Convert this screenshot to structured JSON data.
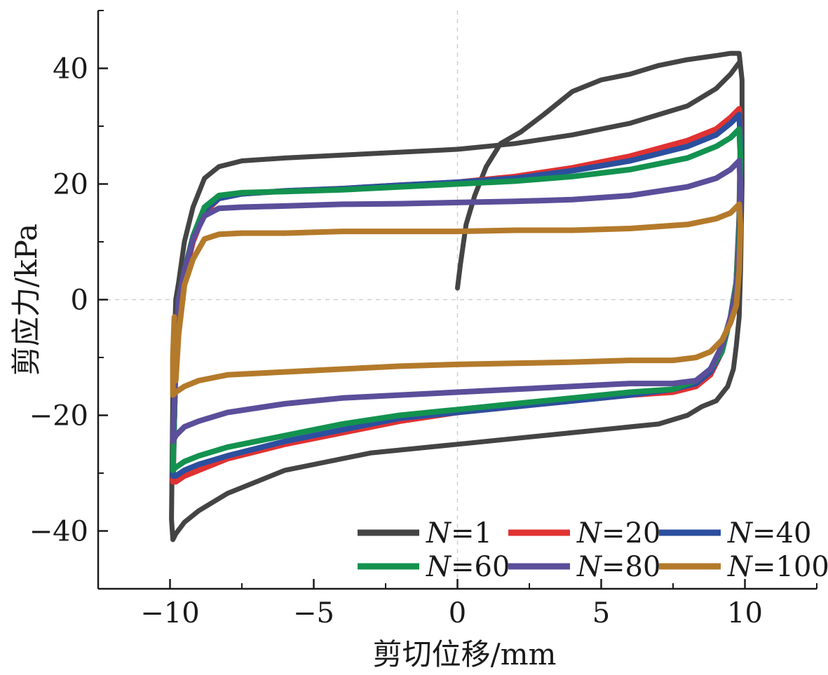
{
  "chart_data": {
    "type": "line",
    "xlabel": "剪切位移/mm",
    "ylabel": "剪应力/kPa",
    "xlim": [
      -12.5,
      12.5
    ],
    "ylim": [
      -50,
      50
    ],
    "xticks": [
      -10,
      -5,
      0,
      5,
      10
    ],
    "yticks": [
      -40,
      -20,
      0,
      20,
      40
    ],
    "xtick_labels": [
      "−10",
      "−5",
      "0",
      "5",
      "10"
    ],
    "ytick_labels": [
      "−40",
      "−20",
      "0",
      "20",
      "40"
    ],
    "grid": "dashed lines at x=0 and y=0 only",
    "legend_position": "bottom-right",
    "series": [
      {
        "name": "N=1",
        "legend_prefix": "N",
        "legend_suffix": "=1",
        "color": "#444444",
        "x": [
          0.0,
          0.1,
          0.3,
          0.6,
          1.0,
          1.5,
          2.2,
          3.0,
          4.0,
          5.0,
          6.0,
          7.0,
          8.0,
          9.0,
          9.5,
          9.8,
          9.9,
          9.9,
          9.85,
          9.8,
          9.7,
          9.6,
          9.4,
          9.0,
          8.5,
          8.0,
          7.0,
          5.0,
          3.0,
          0.0,
          -3.0,
          -6.0,
          -8.0,
          -9.0,
          -9.5,
          -9.8,
          -9.9,
          -9.95,
          -9.9,
          -9.8,
          -9.7,
          -9.5,
          -9.2,
          -8.8,
          -8.3,
          -7.5,
          -6.0,
          -4.0,
          -2.0,
          0.0,
          2.0,
          4.0,
          6.0,
          8.0,
          9.0,
          9.5,
          9.8
        ],
        "y": [
          2.0,
          6.0,
          13.0,
          18.0,
          23.0,
          27.0,
          29.0,
          32.0,
          36.0,
          38.0,
          39.0,
          40.5,
          41.5,
          42.2,
          42.6,
          42.6,
          38.0,
          20.0,
          5.0,
          -3.0,
          -8.0,
          -12.0,
          -15.0,
          -17.5,
          -18.5,
          -20.0,
          -21.5,
          -22.5,
          -23.5,
          -25.0,
          -26.5,
          -29.5,
          -33.5,
          -36.5,
          -38.5,
          -40.5,
          -41.5,
          -38.0,
          -15.0,
          0.0,
          3.0,
          10.0,
          16.0,
          21.0,
          23.0,
          24.0,
          24.5,
          25.0,
          25.5,
          26.0,
          27.0,
          28.5,
          30.5,
          33.5,
          36.5,
          39.0,
          41.0
        ]
      },
      {
        "name": "N=20",
        "legend_prefix": "N",
        "legend_suffix": "=20",
        "color": "#e03232",
        "x": [
          -9.8,
          -9.7,
          -9.5,
          -9.2,
          -8.8,
          -8.3,
          -7.5,
          -6.0,
          -4.0,
          -2.0,
          0.0,
          2.0,
          4.0,
          6.0,
          8.0,
          9.0,
          9.5,
          9.8,
          9.85,
          9.8,
          9.7,
          9.5,
          9.2,
          8.8,
          8.3,
          7.5,
          6.0,
          4.0,
          2.0,
          0.0,
          -2.0,
          -4.0,
          -6.0,
          -8.0,
          -9.0,
          -9.5,
          -9.8,
          -9.9,
          -9.85,
          -9.8
        ],
        "y": [
          -10.0,
          0.0,
          4.0,
          10.0,
          15.0,
          17.5,
          18.3,
          18.8,
          19.2,
          19.8,
          20.3,
          21.3,
          22.8,
          24.8,
          27.5,
          29.5,
          31.5,
          33.0,
          28.0,
          14.0,
          3.0,
          -3.0,
          -9.0,
          -13.0,
          -15.0,
          -16.0,
          -16.5,
          -17.5,
          -18.5,
          -19.5,
          -21.0,
          -23.0,
          -25.0,
          -27.5,
          -29.5,
          -30.5,
          -31.5,
          -31.5,
          -20.0,
          -10.0
        ]
      },
      {
        "name": "N=40",
        "legend_prefix": "N",
        "legend_suffix": "=40",
        "color": "#2b4f9e",
        "x": [
          -9.8,
          -9.7,
          -9.5,
          -9.2,
          -8.8,
          -8.3,
          -7.5,
          -6.0,
          -4.0,
          -2.0,
          0.0,
          2.0,
          4.0,
          6.0,
          8.0,
          9.0,
          9.5,
          9.8,
          9.85,
          9.8,
          9.7,
          9.5,
          9.2,
          8.8,
          8.3,
          7.5,
          6.0,
          4.0,
          2.0,
          0.0,
          -2.0,
          -4.0,
          -6.0,
          -8.0,
          -9.0,
          -9.5,
          -9.8,
          -9.9,
          -9.85,
          -9.8
        ],
        "y": [
          -10.0,
          0.0,
          4.5,
          10.5,
          15.5,
          17.5,
          18.3,
          18.8,
          19.2,
          19.8,
          20.3,
          21.0,
          22.3,
          24.0,
          26.5,
          28.5,
          30.5,
          32.0,
          27.0,
          13.0,
          3.0,
          -3.0,
          -9.0,
          -12.5,
          -14.5,
          -15.5,
          -16.5,
          -17.5,
          -18.5,
          -19.5,
          -20.5,
          -22.5,
          -24.5,
          -27.0,
          -28.5,
          -29.5,
          -30.5,
          -30.5,
          -20.0,
          -10.0
        ]
      },
      {
        "name": "N=60",
        "legend_prefix": "N",
        "legend_suffix": "=60",
        "color": "#13924f",
        "x": [
          -9.8,
          -9.7,
          -9.5,
          -9.2,
          -8.8,
          -8.3,
          -7.5,
          -6.0,
          -4.0,
          -2.0,
          0.0,
          2.0,
          4.0,
          6.0,
          8.0,
          9.0,
          9.5,
          9.8,
          9.85,
          9.8,
          9.7,
          9.5,
          9.2,
          8.8,
          8.3,
          7.5,
          6.0,
          4.0,
          2.0,
          0.0,
          -2.0,
          -4.0,
          -6.0,
          -8.0,
          -9.0,
          -9.5,
          -9.8,
          -9.9,
          -9.85,
          -9.8
        ],
        "y": [
          -10.0,
          0.0,
          5.0,
          11.0,
          16.0,
          18.0,
          18.5,
          18.7,
          19.0,
          19.5,
          20.0,
          20.5,
          21.3,
          22.5,
          24.5,
          26.5,
          28.0,
          29.5,
          24.0,
          12.0,
          3.0,
          -3.0,
          -9.0,
          -12.0,
          -14.0,
          -15.5,
          -16.0,
          -17.0,
          -18.0,
          -19.0,
          -20.0,
          -21.5,
          -23.5,
          -25.5,
          -27.0,
          -28.0,
          -29.0,
          -29.5,
          -20.0,
          -10.0
        ]
      },
      {
        "name": "N=80",
        "legend_prefix": "N",
        "legend_suffix": "=80",
        "color": "#5b4e9a",
        "x": [
          -9.8,
          -9.7,
          -9.5,
          -9.2,
          -8.8,
          -8.3,
          -7.5,
          -6.0,
          -4.0,
          -2.0,
          0.0,
          2.0,
          4.0,
          6.0,
          8.0,
          9.0,
          9.5,
          9.8,
          9.85,
          9.8,
          9.7,
          9.5,
          9.2,
          8.8,
          8.3,
          7.5,
          6.0,
          4.0,
          2.0,
          0.0,
          -2.0,
          -4.0,
          -6.0,
          -8.0,
          -9.0,
          -9.5,
          -9.8,
          -9.9,
          -9.85,
          -9.8
        ],
        "y": [
          -10.0,
          0.0,
          5.0,
          10.5,
          14.5,
          15.8,
          16.0,
          16.2,
          16.5,
          16.6,
          16.8,
          17.0,
          17.3,
          18.0,
          19.5,
          21.0,
          22.5,
          24.0,
          19.0,
          9.0,
          2.0,
          -3.0,
          -8.0,
          -12.0,
          -14.0,
          -14.5,
          -14.5,
          -15.0,
          -15.5,
          -16.0,
          -16.5,
          -17.0,
          -18.0,
          -19.5,
          -21.0,
          -22.0,
          -23.5,
          -24.5,
          -18.0,
          -10.0
        ]
      },
      {
        "name": "N=100",
        "legend_prefix": "N",
        "legend_suffix": "=100",
        "color": "#b47a2b",
        "x": [
          -9.8,
          -9.7,
          -9.5,
          -9.2,
          -8.8,
          -8.3,
          -7.5,
          -6.0,
          -4.0,
          -2.0,
          0.0,
          2.0,
          4.0,
          6.0,
          8.0,
          9.0,
          9.5,
          9.8,
          9.85,
          9.8,
          9.7,
          9.5,
          9.2,
          8.8,
          8.3,
          7.5,
          6.0,
          4.0,
          2.0,
          0.0,
          -2.0,
          -4.0,
          -6.0,
          -8.0,
          -9.0,
          -9.5,
          -9.8,
          -9.9,
          -9.9,
          -9.85
        ],
        "y": [
          -14.0,
          -6.0,
          2.5,
          7.0,
          10.5,
          11.3,
          11.5,
          11.5,
          11.8,
          11.8,
          11.8,
          12.0,
          12.0,
          12.3,
          13.0,
          14.0,
          15.0,
          16.5,
          13.0,
          5.0,
          -1.0,
          -4.0,
          -7.0,
          -9.0,
          -10.0,
          -10.5,
          -10.5,
          -10.8,
          -11.0,
          -11.2,
          -11.5,
          -12.0,
          -12.5,
          -13.0,
          -14.0,
          -15.0,
          -16.0,
          -16.5,
          -10.0,
          -3.0
        ]
      }
    ]
  }
}
